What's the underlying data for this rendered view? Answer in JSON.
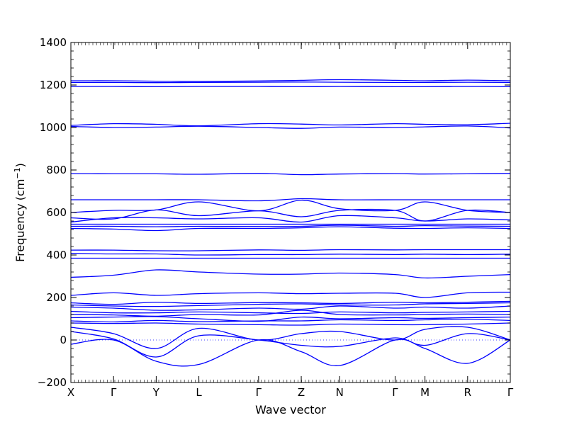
{
  "chart_data": {
    "type": "line",
    "title": "",
    "xlabel": "Wave vector",
    "ylabel": "Frequency (cm⁻¹)",
    "ylabel_main": "Frequency",
    "ylabel_unit": "(cm",
    "ylabel_exp": "−1",
    "ylabel_close": ")",
    "ylim": [
      -200,
      1400
    ],
    "y_ticks": [
      -200,
      0,
      200,
      400,
      600,
      800,
      1000,
      1200,
      1400
    ],
    "x_ticks": [
      "X",
      "Γ",
      "Y",
      "L",
      "Γ",
      "Z",
      "N",
      "Γ",
      "M",
      "R",
      "Γ"
    ],
    "x_tick_positions": [
      0,
      1,
      2,
      3,
      4.4,
      5.4,
      6.3,
      7.6,
      8.3,
      9.3,
      10.3
    ],
    "grid": false,
    "zero_line": true,
    "series": [
      {
        "values": [
          1220,
          1220,
          1218,
          1217,
          1219,
          1222,
          1225,
          1222,
          1220,
          1223,
          1220
        ]
      },
      {
        "values": [
          1212,
          1212,
          1211,
          1212,
          1213,
          1214,
          1213,
          1212,
          1212,
          1213,
          1212
        ]
      },
      {
        "values": [
          1193,
          1193,
          1192,
          1193,
          1193,
          1192,
          1193,
          1192,
          1192,
          1193,
          1192
        ]
      },
      {
        "values": [
          1010,
          1018,
          1015,
          1008,
          1018,
          1016,
          1012,
          1018,
          1015,
          1013,
          1020
        ]
      },
      {
        "values": [
          1005,
          1000,
          1002,
          1006,
          1000,
          996,
          1002,
          1000,
          1003,
          1007,
          998
        ]
      },
      {
        "values": [
          783,
          782,
          782,
          780,
          784,
          778,
          781,
          783,
          781,
          782,
          784
        ]
      },
      {
        "values": [
          660,
          660,
          660,
          660,
          655,
          665,
          660,
          660,
          660,
          660,
          660
        ]
      },
      {
        "values": [
          600,
          610,
          612,
          650,
          608,
          658,
          618,
          610,
          650,
          610,
          600
        ]
      },
      {
        "values": [
          575,
          570,
          612,
          585,
          608,
          580,
          610,
          610,
          560,
          610,
          600
        ]
      },
      {
        "values": [
          555,
          575,
          575,
          570,
          575,
          555,
          585,
          575,
          560,
          570,
          565
        ]
      },
      {
        "values": [
          545,
          545,
          545,
          545,
          545,
          545,
          545,
          545,
          545,
          545,
          545
        ]
      },
      {
        "values": [
          535,
          535,
          533,
          535,
          534,
          535,
          540,
          535,
          538,
          536,
          535
        ]
      },
      {
        "values": [
          525,
          522,
          515,
          525,
          525,
          528,
          533,
          526,
          525,
          528,
          525
        ]
      },
      {
        "values": [
          423,
          423,
          420,
          420,
          424,
          422,
          425,
          424,
          425,
          425,
          425
        ]
      },
      {
        "values": [
          408,
          405,
          405,
          400,
          402,
          402,
          404,
          402,
          404,
          402,
          404
        ]
      },
      {
        "values": [
          385,
          385,
          385,
          385,
          385,
          385,
          385,
          385,
          385,
          385,
          385
        ]
      },
      {
        "values": [
          295,
          305,
          330,
          320,
          310,
          310,
          315,
          308,
          292,
          300,
          308
        ]
      },
      {
        "values": [
          210,
          222,
          210,
          218,
          222,
          218,
          220,
          220,
          200,
          222,
          225
        ]
      },
      {
        "values": [
          175,
          168,
          178,
          172,
          176,
          175,
          172,
          178,
          175,
          178,
          182
        ]
      },
      {
        "values": [
          165,
          160,
          158,
          162,
          168,
          170,
          165,
          165,
          170,
          172,
          175
        ]
      },
      {
        "values": [
          155,
          150,
          140,
          142,
          150,
          145,
          160,
          150,
          155,
          150,
          160
        ]
      },
      {
        "values": [
          135,
          128,
          128,
          132,
          128,
          125,
          132,
          128,
          130,
          132,
          135
        ]
      },
      {
        "values": [
          120,
          118,
          112,
          120,
          118,
          140,
          120,
          118,
          120,
          122,
          120
        ]
      },
      {
        "values": [
          105,
          108,
          110,
          100,
          88,
          108,
          100,
          105,
          102,
          105,
          108
        ]
      },
      {
        "values": [
          90,
          85,
          92,
          86,
          90,
          90,
          95,
          92,
          95,
          98,
          92
        ]
      },
      {
        "values": [
          80,
          78,
          80,
          75,
          72,
          70,
          75,
          72,
          72,
          75,
          80
        ]
      },
      {
        "values": [
          60,
          30,
          -40,
          55,
          0,
          30,
          40,
          0,
          50,
          60,
          0
        ]
      },
      {
        "values": [
          40,
          5,
          -80,
          20,
          0,
          -25,
          -30,
          10,
          -25,
          30,
          0
        ]
      },
      {
        "values": [
          -20,
          0,
          -100,
          -115,
          0,
          -55,
          -120,
          0,
          -40,
          -110,
          0
        ]
      }
    ]
  }
}
